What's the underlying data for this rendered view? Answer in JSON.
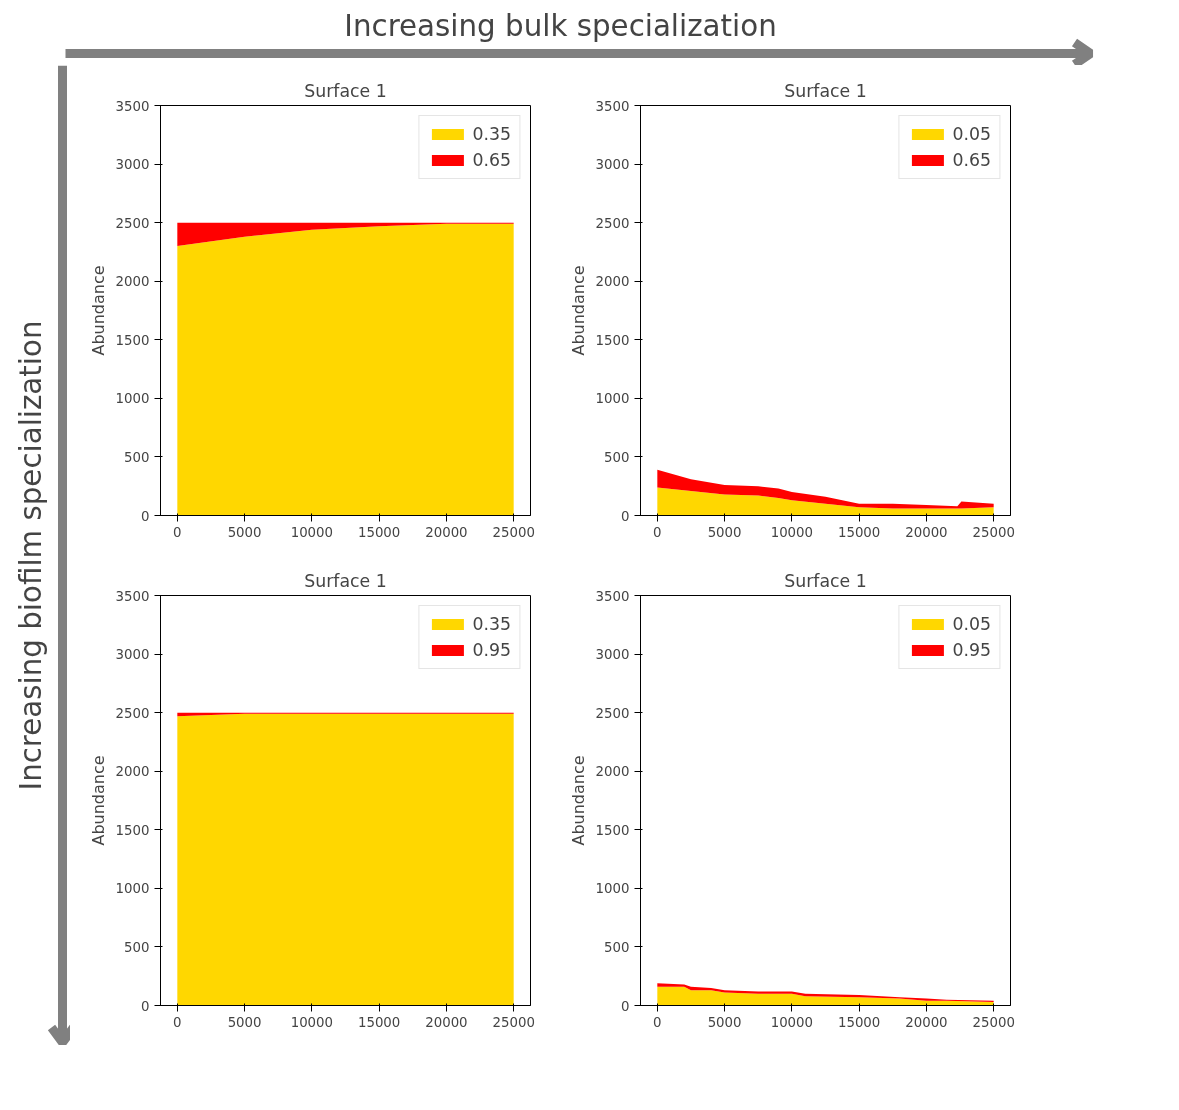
{
  "chart_data": [
    {
      "type": "area",
      "title": "Surface 1",
      "ylabel": "Abundance",
      "stacked": true,
      "annotations": [
        "Increasing bulk specialization",
        "Increasing biofilm specialization"
      ],
      "x": [
        0,
        5000,
        10000,
        15000,
        20000,
        25000
      ],
      "series": [
        {
          "name": "0.35",
          "color": "#ffd700",
          "values": [
            2300,
            2380,
            2440,
            2470,
            2490,
            2490
          ]
        },
        {
          "name": "0.65",
          "color": "#ff0000",
          "values": [
            200,
            120,
            60,
            30,
            10,
            10
          ]
        }
      ],
      "xlim": [
        -1250,
        26250
      ],
      "ylim": [
        0,
        3500
      ],
      "xticks": [
        0,
        5000,
        10000,
        15000,
        20000,
        25000
      ],
      "yticks": [
        0,
        500,
        1000,
        1500,
        2000,
        2500,
        3000,
        3500
      ],
      "legend": "top right",
      "grid": false
    },
    {
      "type": "area",
      "title": "Surface 1",
      "ylabel": "Abundance",
      "stacked": true,
      "x": [
        0,
        2500,
        5000,
        7500,
        9000,
        10000,
        12500,
        15000,
        17500,
        20000,
        22300,
        22600,
        25000
      ],
      "series": [
        {
          "name": "0.05",
          "color": "#ffd700",
          "values": [
            240,
            210,
            180,
            170,
            150,
            130,
            100,
            70,
            60,
            60,
            60,
            60,
            70
          ]
        },
        {
          "name": "0.65",
          "color": "#ff0000",
          "values": [
            150,
            100,
            80,
            80,
            80,
            70,
            60,
            30,
            40,
            30,
            20,
            60,
            30
          ]
        }
      ],
      "xlim": [
        -1250,
        26250
      ],
      "ylim": [
        0,
        3500
      ],
      "xticks": [
        0,
        5000,
        10000,
        15000,
        20000,
        25000
      ],
      "yticks": [
        0,
        500,
        1000,
        1500,
        2000,
        2500,
        3000,
        3500
      ],
      "legend": "top right",
      "grid": false
    },
    {
      "type": "area",
      "title": "Surface 1",
      "ylabel": "Abundance",
      "stacked": true,
      "x": [
        0,
        5000,
        10000,
        15000,
        25000
      ],
      "series": [
        {
          "name": "0.35",
          "color": "#ffd700",
          "values": [
            2470,
            2490,
            2490,
            2490,
            2490
          ]
        },
        {
          "name": "0.95",
          "color": "#ff0000",
          "values": [
            30,
            10,
            10,
            10,
            10
          ]
        }
      ],
      "xlim": [
        -1250,
        26250
      ],
      "ylim": [
        0,
        3500
      ],
      "xticks": [
        0,
        5000,
        10000,
        15000,
        20000,
        25000
      ],
      "yticks": [
        0,
        500,
        1000,
        1500,
        2000,
        2500,
        3000,
        3500
      ],
      "legend": "top right",
      "grid": false
    },
    {
      "type": "area",
      "title": "Surface 1",
      "ylabel": "Abundance",
      "stacked": true,
      "x": [
        0,
        2000,
        2500,
        4000,
        5000,
        7500,
        10000,
        11000,
        15000,
        18000,
        20000,
        21500,
        25000
      ],
      "series": [
        {
          "name": "0.05",
          "color": "#ffd700",
          "values": [
            160,
            160,
            130,
            130,
            110,
            100,
            100,
            80,
            70,
            60,
            40,
            40,
            30
          ]
        },
        {
          "name": "0.95",
          "color": "#ff0000",
          "values": [
            30,
            20,
            30,
            20,
            20,
            20,
            20,
            20,
            20,
            10,
            20,
            10,
            10
          ]
        }
      ],
      "xlim": [
        -1250,
        26250
      ],
      "ylim": [
        0,
        3500
      ],
      "xticks": [
        0,
        5000,
        10000,
        15000,
        20000,
        25000
      ],
      "yticks": [
        0,
        500,
        1000,
        1500,
        2000,
        2500,
        3000,
        3500
      ],
      "legend": "top right",
      "grid": false
    }
  ]
}
